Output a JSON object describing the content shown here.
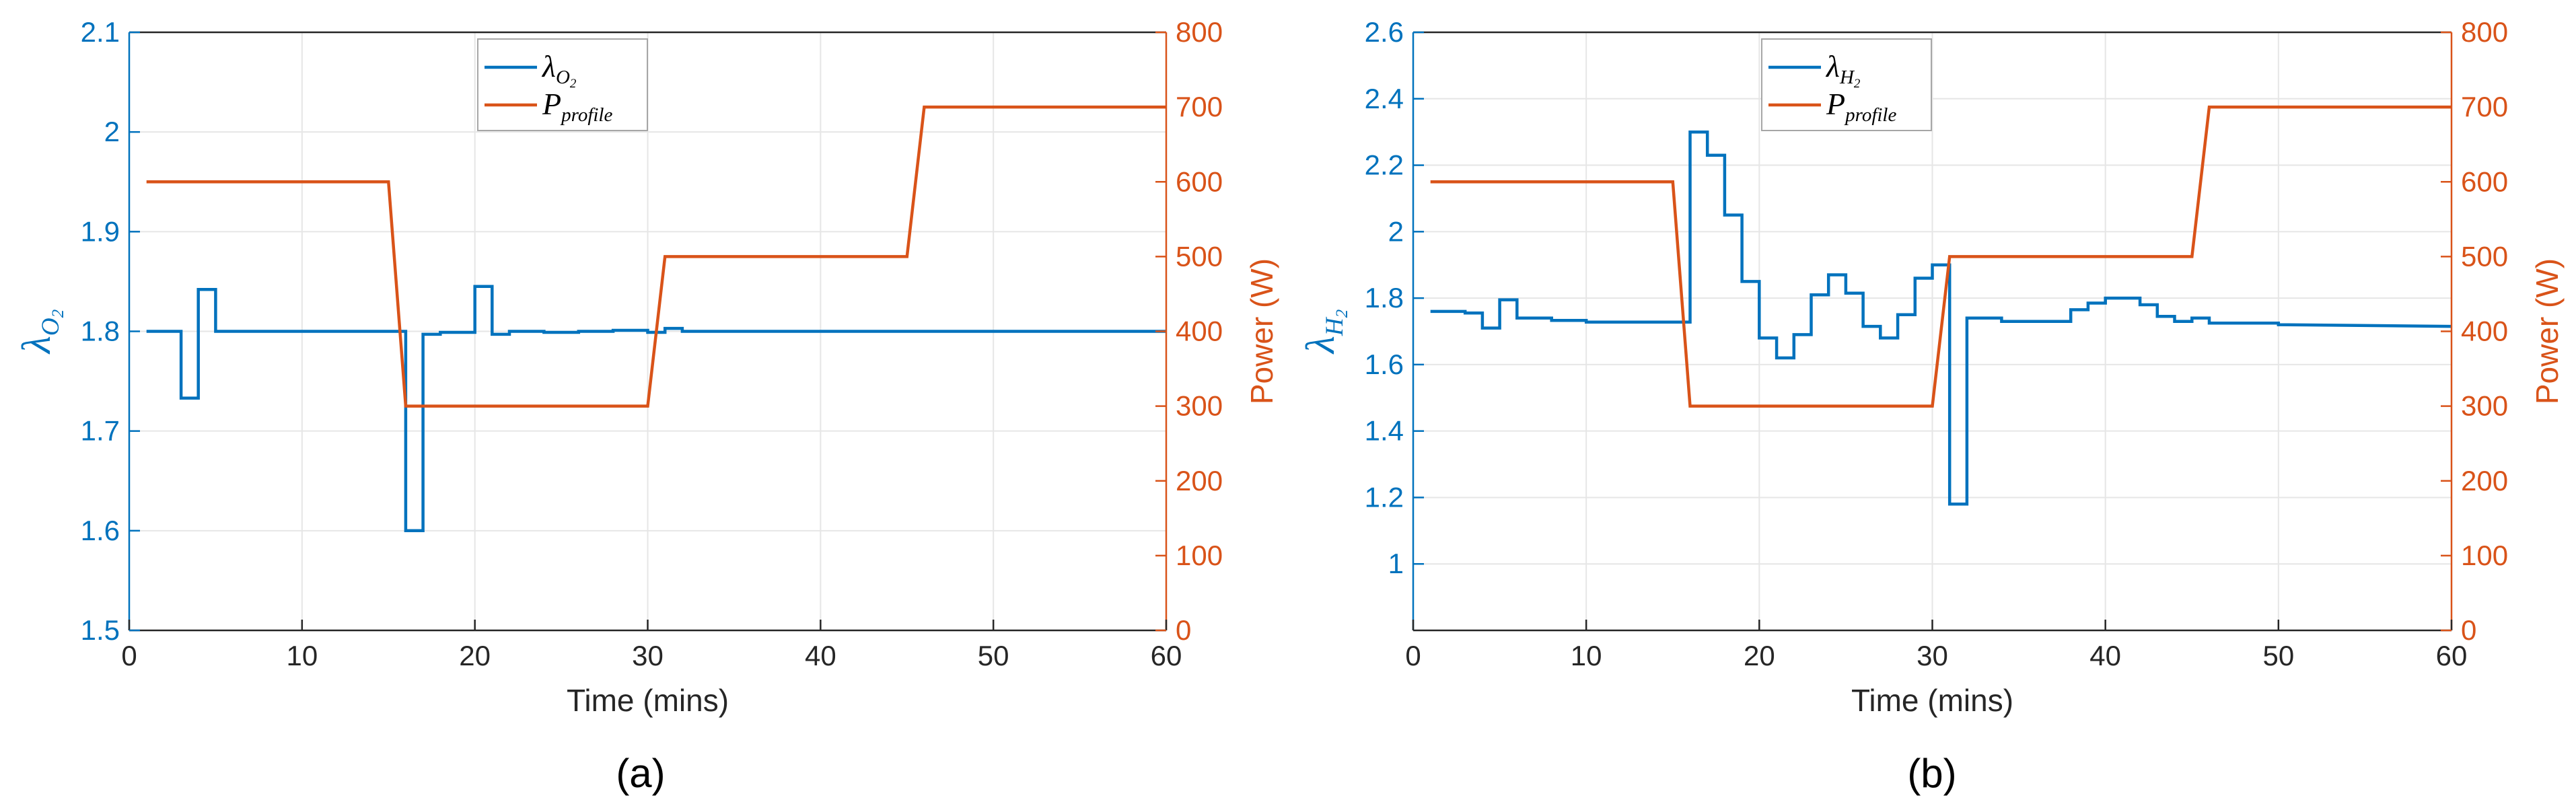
{
  "colors": {
    "left_axis": "#0072BD",
    "right_axis": "#D95319",
    "grid": "#e6e6e6",
    "axes": "#262626"
  },
  "chart_data": [
    {
      "type": "line",
      "caption": "(a)",
      "xlabel": "Time (mins)",
      "ylabel_symbol": "λ",
      "ylabel_sub": "O",
      "ylabel_subsub": "2",
      "ylabel_right": "Power (W)",
      "xlim": [
        0,
        60
      ],
      "ylim": [
        1.5,
        2.1
      ],
      "ylim_right": [
        0,
        800
      ],
      "xticks": [
        "0",
        "10",
        "20",
        "30",
        "40",
        "50",
        "60"
      ],
      "yticks": [
        "1.5",
        "1.6",
        "1.7",
        "1.8",
        "1.9",
        "2",
        "2.1"
      ],
      "yticks_right": [
        "0",
        "100",
        "200",
        "300",
        "400",
        "500",
        "600",
        "700",
        "800"
      ],
      "grid": true,
      "legend_position": "top-center",
      "legend": [
        {
          "symbol": "λ",
          "sub": "O",
          "subsub": "2",
          "color": "#0072BD"
        },
        {
          "symbol": "P",
          "sub": "profile",
          "subsub": "",
          "color": "#D95319"
        }
      ],
      "series": [
        {
          "axis": "left",
          "color": "#0072BD",
          "x": [
            1,
            3,
            3,
            4,
            4,
            5,
            5,
            16,
            16,
            17,
            17,
            18,
            18,
            20,
            20,
            21,
            21,
            22,
            22,
            24,
            24,
            26,
            26,
            28,
            28,
            30,
            30,
            31,
            31,
            32,
            32,
            45,
            45,
            60
          ],
          "y": [
            1.8,
            1.8,
            1.733,
            1.733,
            1.842,
            1.842,
            1.8,
            1.8,
            1.6,
            1.6,
            1.797,
            1.797,
            1.799,
            1.799,
            1.845,
            1.845,
            1.797,
            1.797,
            1.8,
            1.8,
            1.799,
            1.799,
            1.8,
            1.8,
            1.801,
            1.801,
            1.799,
            1.799,
            1.803,
            1.803,
            1.8,
            1.8,
            1.8,
            1.8
          ]
        },
        {
          "axis": "right",
          "color": "#D95319",
          "x": [
            1,
            15,
            16,
            30,
            31,
            45,
            46,
            60
          ],
          "y": [
            600,
            600,
            300,
            300,
            500,
            500,
            700,
            700
          ]
        }
      ]
    },
    {
      "type": "line",
      "caption": "(b)",
      "xlabel": "Time (mins)",
      "ylabel_symbol": "λ",
      "ylabel_sub": "H",
      "ylabel_subsub": "2",
      "ylabel_right": "Power (W)",
      "xlim": [
        0,
        60
      ],
      "ylim": [
        0.8,
        2.6
      ],
      "ylim_right": [
        0,
        800
      ],
      "xticks": [
        "0",
        "10",
        "20",
        "30",
        "40",
        "50",
        "60"
      ],
      "yticks": [
        "1",
        "1.2",
        "1.4",
        "1.6",
        "1.8",
        "2",
        "2.2",
        "2.4",
        "2.6"
      ],
      "yticks_right": [
        "0",
        "100",
        "200",
        "300",
        "400",
        "500",
        "600",
        "700",
        "800"
      ],
      "grid": true,
      "legend_position": "top-center",
      "legend": [
        {
          "symbol": "λ",
          "sub": "H",
          "subsub": "2",
          "color": "#0072BD"
        },
        {
          "symbol": "P",
          "sub": "profile",
          "subsub": "",
          "color": "#D95319"
        }
      ],
      "series": [
        {
          "axis": "left",
          "color": "#0072BD",
          "x": [
            1,
            3,
            3,
            4,
            4,
            5,
            5,
            6,
            6,
            8,
            8,
            10,
            10,
            16,
            16,
            17,
            17,
            18,
            18,
            19,
            19,
            20,
            20,
            21,
            21,
            22,
            22,
            23,
            23,
            24,
            24,
            25,
            25,
            26,
            26,
            27,
            27,
            28,
            28,
            29,
            29,
            30,
            30,
            31,
            31,
            32,
            32,
            34,
            34,
            38,
            38,
            39,
            39,
            40,
            40,
            42,
            42,
            43,
            43,
            44,
            44,
            45,
            45,
            46,
            46,
            50,
            50,
            60
          ],
          "y": [
            1.76,
            1.76,
            1.755,
            1.755,
            1.71,
            1.71,
            1.795,
            1.795,
            1.74,
            1.74,
            1.733,
            1.733,
            1.728,
            1.728,
            2.3,
            2.3,
            2.23,
            2.23,
            2.05,
            2.05,
            1.85,
            1.85,
            1.68,
            1.68,
            1.62,
            1.62,
            1.69,
            1.69,
            1.81,
            1.81,
            1.87,
            1.87,
            1.815,
            1.815,
            1.715,
            1.715,
            1.68,
            1.68,
            1.75,
            1.75,
            1.86,
            1.86,
            1.9,
            1.9,
            1.18,
            1.18,
            1.74,
            1.74,
            1.73,
            1.73,
            1.765,
            1.765,
            1.785,
            1.785,
            1.8,
            1.8,
            1.78,
            1.78,
            1.745,
            1.745,
            1.73,
            1.73,
            1.74,
            1.74,
            1.725,
            1.725,
            1.72,
            1.715
          ]
        },
        {
          "axis": "right",
          "color": "#D95319",
          "x": [
            1,
            15,
            16,
            30,
            31,
            45,
            46,
            60
          ],
          "y": [
            600,
            600,
            300,
            300,
            500,
            500,
            700,
            700
          ]
        }
      ]
    }
  ]
}
